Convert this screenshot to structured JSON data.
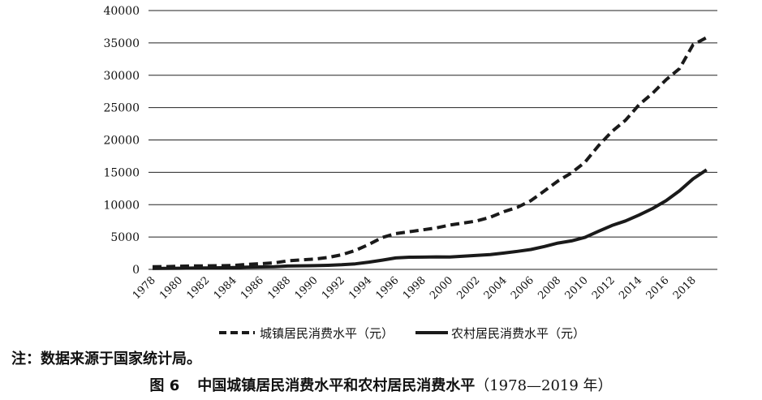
{
  "chart_data": {
    "type": "line",
    "ylim": [
      0,
      40000
    ],
    "yticks": [
      0,
      5000,
      10000,
      15000,
      20000,
      25000,
      30000,
      35000,
      40000
    ],
    "xticks": [
      "1978",
      "1980",
      "1982",
      "1984",
      "1986",
      "1988",
      "1990",
      "1992",
      "1994",
      "1996",
      "1998",
      "2000",
      "2002",
      "2004",
      "2006",
      "2008",
      "2010",
      "2012",
      "2014",
      "2016",
      "2018"
    ],
    "x": [
      1978,
      1979,
      1980,
      1981,
      1982,
      1983,
      1984,
      1985,
      1986,
      1987,
      1988,
      1989,
      1990,
      1991,
      1992,
      1993,
      1994,
      1995,
      1996,
      1997,
      1998,
      1999,
      2000,
      2001,
      2002,
      2003,
      2004,
      2005,
      2006,
      2007,
      2008,
      2009,
      2010,
      2011,
      2012,
      2013,
      2014,
      2015,
      2016,
      2017,
      2018,
      2019
    ],
    "grid": true,
    "legend_position": "bottom",
    "series": [
      {
        "name": "城镇居民消费水平（元）",
        "style": "dashed",
        "values": [
          405,
          425,
          490,
          521,
          536,
          558,
          618,
          765,
          872,
          998,
          1311,
          1466,
          1596,
          1840,
          2262,
          2924,
          3852,
          4931,
          5532,
          5823,
          6109,
          6405,
          6850,
          7161,
          7486,
          8060,
          8912,
          9593,
          10618,
          12130,
          13653,
          14904,
          16546,
          19108,
          21306,
          23050,
          25424,
          27210,
          29295,
          31032,
          34707,
          35823
        ]
      },
      {
        "name": "农村居民消费水平（元）",
        "style": "solid",
        "values": [
          138,
          159,
          178,
          201,
          223,
          250,
          287,
          349,
          378,
          417,
          508,
          553,
          571,
          621,
          718,
          855,
          1118,
          1434,
          1768,
          1876,
          1895,
          1927,
          1917,
          2032,
          2157,
          2292,
          2521,
          2784,
          3066,
          3538,
          4065,
          4402,
          4941,
          5880,
          6785,
          7485,
          8383,
          9409,
          10609,
          12145,
          13985,
          15382
        ]
      }
    ]
  },
  "note": "注：数据来源于国家统计局。",
  "caption": {
    "number": "图 6",
    "title": "中国城镇居民消费水平和农村居民消费水平",
    "range": "（1978—2019 年）"
  },
  "colors": {
    "line": "#1a1a1a",
    "grid": "#222222"
  }
}
